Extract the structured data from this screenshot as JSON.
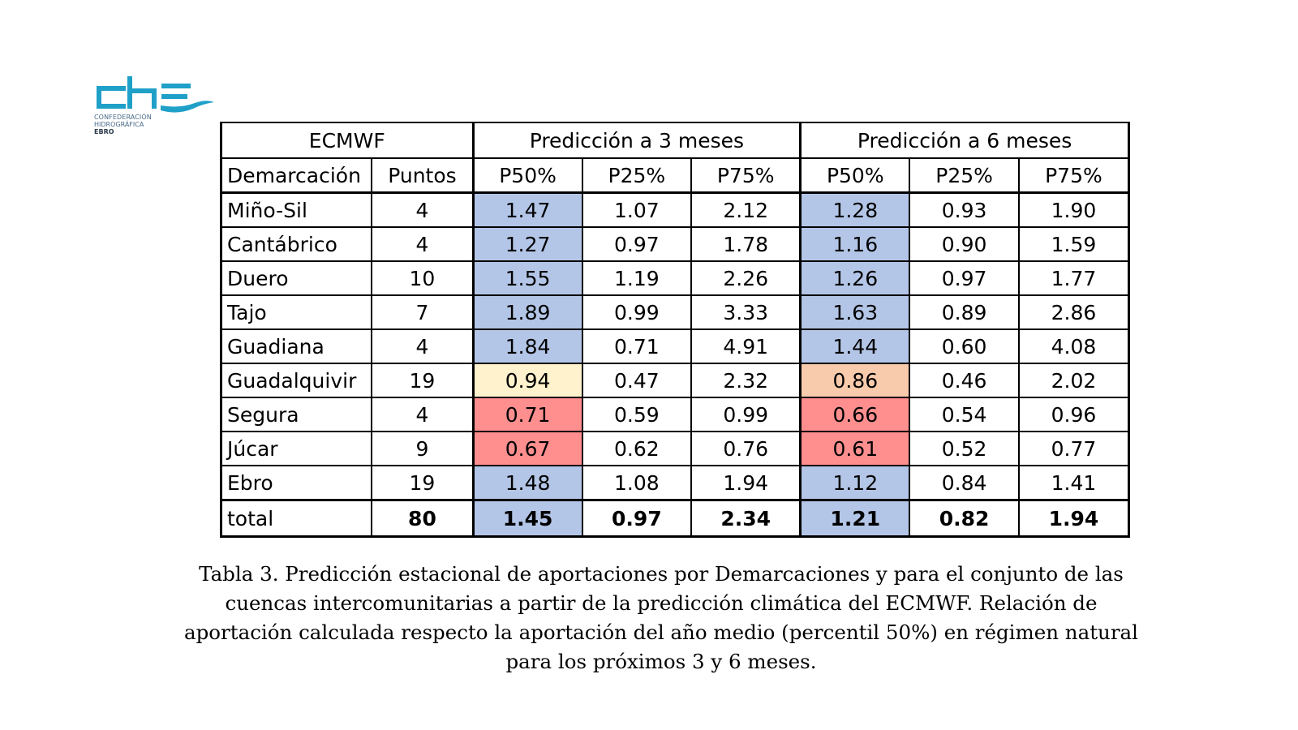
{
  "logo": {
    "mark": "che",
    "line1": "CONFEDERACIÓN",
    "line2": "HIDROGRÁFICA",
    "line3": "EBRO",
    "color": "#1fa0c8"
  },
  "table": {
    "header_model": "ECMWF",
    "group_3m": "Predicción a 3 meses",
    "group_6m": "Predicción a 6 meses",
    "col_demarcacion": "Demarcación",
    "col_puntos": "Puntos",
    "col_p50_3m": "P50%",
    "col_p25_3m": "P25%",
    "col_p75_3m": "P75%",
    "col_p50_6m": "P50%",
    "col_p25_6m": "P25%",
    "col_p75_6m": "P75%",
    "rows": [
      {
        "name": "Miño-Sil",
        "puntos": "4",
        "p50_3": "1.47",
        "p25_3": "1.07",
        "p75_3": "2.12",
        "p50_6": "1.28",
        "p25_6": "0.93",
        "p75_6": "1.90"
      },
      {
        "name": "Cantábrico",
        "puntos": "4",
        "p50_3": "1.27",
        "p25_3": "0.97",
        "p75_3": "1.78",
        "p50_6": "1.16",
        "p25_6": "0.90",
        "p75_6": "1.59"
      },
      {
        "name": "Duero",
        "puntos": "10",
        "p50_3": "1.55",
        "p25_3": "1.19",
        "p75_3": "2.26",
        "p50_6": "1.26",
        "p25_6": "0.97",
        "p75_6": "1.77"
      },
      {
        "name": "Tajo",
        "puntos": "7",
        "p50_3": "1.89",
        "p25_3": "0.99",
        "p75_3": "3.33",
        "p50_6": "1.63",
        "p25_6": "0.89",
        "p75_6": "2.86"
      },
      {
        "name": "Guadiana",
        "puntos": "4",
        "p50_3": "1.84",
        "p25_3": "0.71",
        "p75_3": "4.91",
        "p50_6": "1.44",
        "p25_6": "0.60",
        "p75_6": "4.08"
      },
      {
        "name": "Guadalquivir",
        "puntos": "19",
        "p50_3": "0.94",
        "p25_3": "0.47",
        "p75_3": "2.32",
        "p50_6": "0.86",
        "p25_6": "0.46",
        "p75_6": "2.02"
      },
      {
        "name": "Segura",
        "puntos": "4",
        "p50_3": "0.71",
        "p25_3": "0.59",
        "p75_3": "0.99",
        "p50_6": "0.66",
        "p25_6": "0.54",
        "p75_6": "0.96"
      },
      {
        "name": "Júcar",
        "puntos": "9",
        "p50_3": "0.67",
        "p25_3": "0.62",
        "p75_3": "0.76",
        "p50_6": "0.61",
        "p25_6": "0.52",
        "p75_6": "0.77"
      },
      {
        "name": "Ebro",
        "puntos": "19",
        "p50_3": "1.48",
        "p25_3": "1.08",
        "p75_3": "1.94",
        "p50_6": "1.12",
        "p25_6": "0.84",
        "p75_6": "1.41"
      }
    ],
    "total": {
      "name": "total",
      "puntos": "80",
      "p50_3": "1.45",
      "p25_3": "0.97",
      "p75_3": "2.34",
      "p50_6": "1.21",
      "p25_6": "0.82",
      "p75_6": "1.94"
    },
    "colors": {
      "above_normal": "#b4c6e7",
      "slightly_below": "#fff2cc",
      "below": "#f8cbad",
      "well_below": "#ff8f8f"
    }
  },
  "caption": "Tabla 3. Predicción estacional de aportaciones por Demarcaciones y para el conjunto de las cuencas intercomunitarias a partir de la predicción climática del ECMWF. Relación de aportación calculada respecto la aportación del año medio (percentil 50%) en régimen natural para los próximos 3 y 6 meses."
}
